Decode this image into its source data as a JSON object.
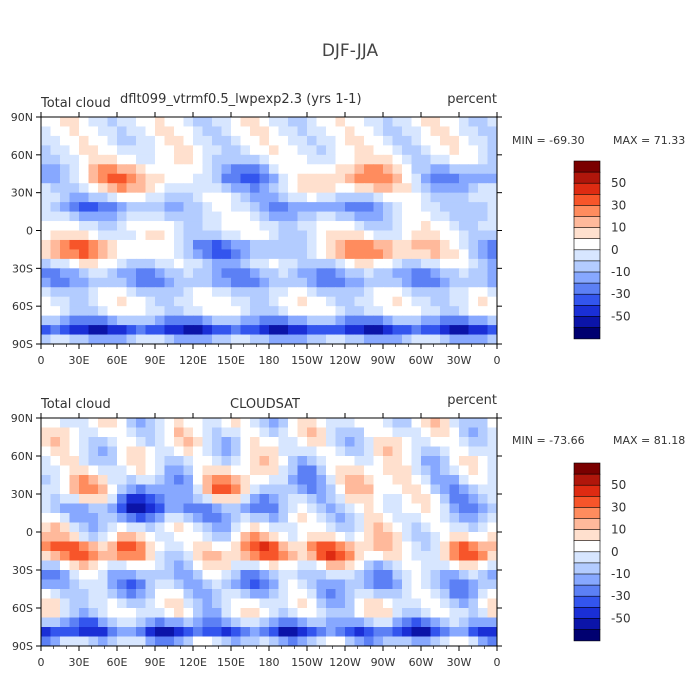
{
  "chart_data": {
    "type": "heatmap",
    "title": "DJF-JJA",
    "colorbar_labels": [
      "50",
      "30",
      "10",
      "0",
      "-10",
      "-30",
      "-50"
    ],
    "colorbar_colors": [
      "#7a0000",
      "#b0160b",
      "#de2b12",
      "#f7552a",
      "#ff8c5e",
      "#ffb99b",
      "#ffe0ce",
      "#ffffff",
      "#d7e6ff",
      "#b3ccff",
      "#87a8ff",
      "#5c80f5",
      "#3355ee",
      "#1a2fd6",
      "#0b14a8",
      "#000070"
    ],
    "x_tick_labels": [
      "0",
      "30E",
      "60E",
      "90E",
      "120E",
      "150E",
      "180",
      "150W",
      "120W",
      "90W",
      "60W",
      "30W",
      "0"
    ],
    "y_tick_labels": [
      "90N",
      "60N",
      "30N",
      "0",
      "30S",
      "60S",
      "90S"
    ],
    "panels": [
      {
        "left_label": "Total cloud",
        "center_label": "dflt099_vtrmf0.5_lwpexp2.3 (yrs 1-1)",
        "right_label": "percent",
        "min_label": "MIN = -69.30",
        "max_label": "MAX =  71.33",
        "min": -69.3,
        "max": 71.33
      },
      {
        "left_label": "Total cloud",
        "center_label": "CLOUDSAT",
        "right_label": "percent",
        "min_label": "MIN = -73.66",
        "max_label": "MAX =  81.18",
        "min": -73.66,
        "max": 81.18
      }
    ]
  }
}
